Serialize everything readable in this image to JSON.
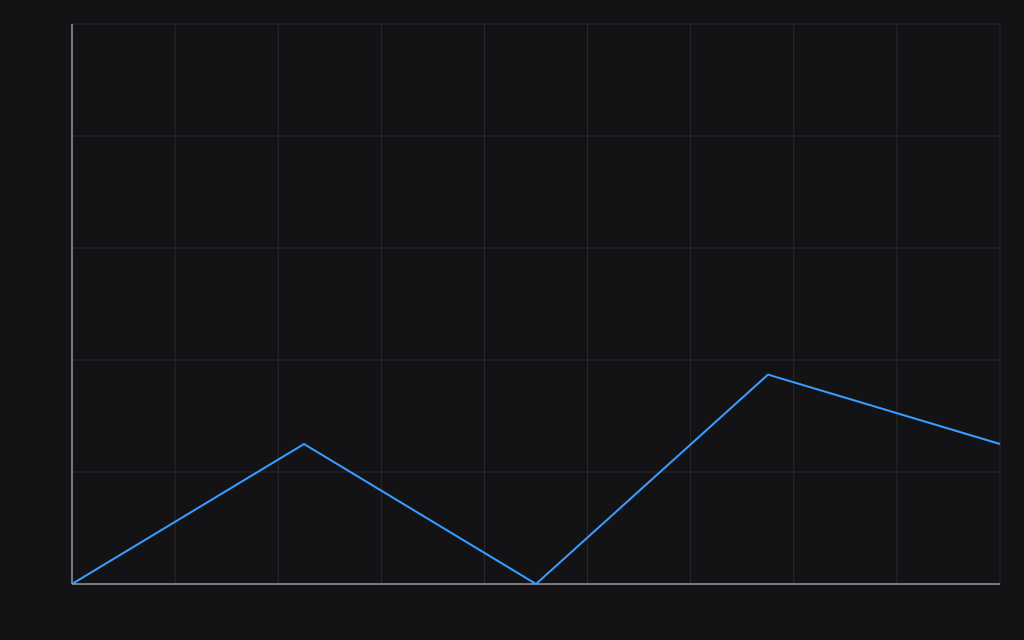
{
  "chart_data": {
    "type": "line",
    "title": "",
    "xlabel": "",
    "ylabel": "",
    "grid": true,
    "legend": "none",
    "xlim": [
      0,
      4
    ],
    "ylim": [
      0,
      5
    ],
    "x_grid_divisions": 9,
    "y_grid_divisions": 5,
    "series": [
      {
        "color": "#3b9cff",
        "points": [
          {
            "x": 0,
            "y": 0
          },
          {
            "x": 1,
            "y": 1.25
          },
          {
            "x": 2,
            "y": 0
          },
          {
            "x": 3,
            "y": 1.87
          },
          {
            "x": 4,
            "y": 1.25
          }
        ]
      }
    ]
  },
  "colors": {
    "background": "#131316",
    "grid": "#2a2a2e",
    "axis": "#9a9a9f"
  }
}
